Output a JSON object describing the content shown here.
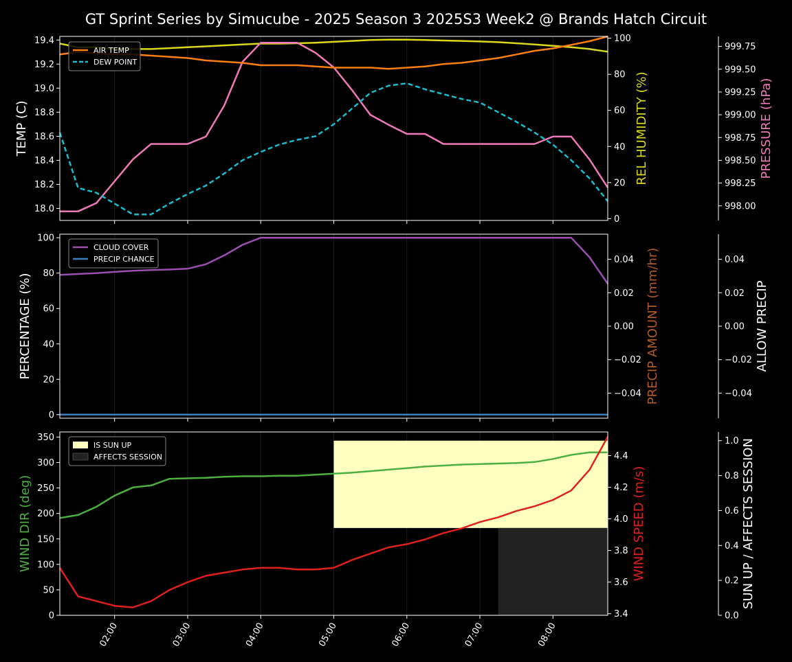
{
  "title": "GT Sprint Series by Simucube - 2025 Season 3 2025S3 Week2 @ Brands Hatch Circuit",
  "x_ticks": [
    "02:00",
    "03:00",
    "04:00",
    "05:00",
    "06:00",
    "07:00",
    "08:00"
  ],
  "colors": {
    "air_temp": "#ff7f0e",
    "dew_point": "#17becf",
    "humidity": "#d8d81c",
    "pressure": "#f07ab8",
    "cloud": "#9b4fb0",
    "precip_chance": "#3f7fbf",
    "wind_dir": "#4caf3f",
    "wind_speed": "#e0201c",
    "sun_up": "#ffffc0",
    "affects": "#222222",
    "precip_amount_label": "#b05a2a"
  },
  "chart_data": [
    {
      "type": "line",
      "panel": "top",
      "x_hours": [
        1.25,
        1.5,
        1.75,
        2.0,
        2.25,
        2.5,
        2.75,
        3.0,
        3.25,
        3.5,
        3.75,
        4.0,
        4.25,
        4.5,
        4.75,
        5.0,
        5.25,
        5.5,
        5.75,
        6.0,
        6.25,
        6.5,
        6.75,
        7.0,
        7.25,
        7.5,
        7.75,
        8.0,
        8.25,
        8.5,
        8.75
      ],
      "ylabel_left": "TEMP (C)",
      "ylabel_right1": "REL HUMIDITY (%)",
      "ylabel_right2": "PRESSURE (hPa)",
      "left_ticks": [
        "18.0",
        "18.2",
        "18.4",
        "18.6",
        "18.8",
        "19.0",
        "19.2",
        "19.4"
      ],
      "right1_ticks": [
        "0",
        "20",
        "40",
        "60",
        "80",
        "100"
      ],
      "right2_ticks": [
        "998.00",
        "998.25",
        "998.50",
        "998.75",
        "999.00",
        "999.25",
        "999.50",
        "999.75"
      ],
      "ylim_left": [
        17.9,
        19.43
      ],
      "ylim_right1": [
        -1,
        101
      ],
      "ylim_right2": [
        997.84,
        999.86
      ],
      "legend": [
        "AIR TEMP",
        "DEW POINT"
      ],
      "series": [
        {
          "name": "AIR TEMP",
          "axis": "left",
          "values": [
            19.28,
            19.3,
            19.29,
            19.28,
            19.28,
            19.27,
            19.26,
            19.25,
            19.23,
            19.22,
            19.21,
            19.19,
            19.19,
            19.19,
            19.18,
            19.17,
            19.17,
            19.17,
            19.16,
            19.17,
            19.18,
            19.2,
            19.21,
            19.23,
            19.25,
            19.28,
            19.31,
            19.33,
            19.36,
            19.39,
            19.43
          ]
        },
        {
          "name": "DEW POINT",
          "axis": "left",
          "style": "dashed",
          "values": [
            18.63,
            18.17,
            18.13,
            18.04,
            17.95,
            17.95,
            18.04,
            18.12,
            18.19,
            18.29,
            18.4,
            18.47,
            18.53,
            18.57,
            18.6,
            18.7,
            18.83,
            18.96,
            19.02,
            19.04,
            18.99,
            18.95,
            18.91,
            18.88,
            18.8,
            18.72,
            18.63,
            18.53,
            18.4,
            18.25,
            18.06
          ]
        },
        {
          "name": "REL HUMIDITY",
          "axis": "right1",
          "values": [
            97,
            95,
            95,
            94,
            94,
            94,
            94.5,
            95,
            95.5,
            96,
            96.5,
            97,
            97,
            97.2,
            97.5,
            98,
            98.5,
            99,
            99.2,
            99.2,
            99,
            98.7,
            98.5,
            98.2,
            97.8,
            97.2,
            96.5,
            95.8,
            95,
            94,
            92.5
          ]
        },
        {
          "name": "PRESSURE",
          "axis": "right2",
          "values": [
            997.94,
            997.94,
            998.03,
            998.27,
            998.51,
            998.68,
            998.68,
            998.68,
            998.76,
            999.1,
            999.58,
            999.79,
            999.79,
            999.79,
            999.68,
            999.52,
            999.27,
            999.0,
            998.89,
            998.79,
            998.79,
            998.68,
            998.68,
            998.68,
            998.68,
            998.68,
            998.68,
            998.76,
            998.76,
            998.51,
            998.2
          ]
        }
      ]
    },
    {
      "type": "line",
      "panel": "middle",
      "ylabel_left": "PERCENTAGE (%)",
      "ylabel_right1": "PRECIP AMOUNT (mm/hr)",
      "ylabel_right2": "ALLOW PRECIP",
      "left_ticks": [
        "0",
        "20",
        "40",
        "60",
        "80",
        "100"
      ],
      "right1_ticks": [
        "−0.04",
        "−0.02",
        "0.00",
        "0.02",
        "0.04"
      ],
      "right2_ticks": [
        "−0.04",
        "−0.02",
        "0.00",
        "0.02",
        "0.04"
      ],
      "ylim_left": [
        -2,
        102
      ],
      "ylim_right": [
        -0.055,
        0.055
      ],
      "legend": [
        "CLOUD COVER",
        "PRECIP CHANCE"
      ],
      "series": [
        {
          "name": "CLOUD COVER",
          "values": [
            79,
            79.5,
            80,
            80.7,
            81.3,
            81.7,
            82,
            82.5,
            85,
            90,
            96,
            100,
            100,
            100,
            100,
            100,
            100,
            100,
            100,
            100,
            100,
            100,
            100,
            100,
            100,
            100,
            100,
            100,
            100,
            89,
            74
          ]
        },
        {
          "name": "PRECIP CHANCE",
          "values": [
            0,
            0,
            0,
            0,
            0,
            0,
            0,
            0,
            0,
            0,
            0,
            0,
            0,
            0,
            0,
            0,
            0,
            0,
            0,
            0,
            0,
            0,
            0,
            0,
            0,
            0,
            0,
            0,
            0,
            0,
            0
          ]
        }
      ]
    },
    {
      "type": "line",
      "panel": "bottom",
      "ylabel_left": "WIND DIR (deg)",
      "ylabel_right1": "WIND SPEED (m/s)",
      "ylabel_right2": "SUN UP / AFFECTS SESSION",
      "left_ticks": [
        "0",
        "50",
        "100",
        "150",
        "200",
        "250",
        "300",
        "350"
      ],
      "right1_ticks": [
        "3.4",
        "3.6",
        "3.8",
        "4.0",
        "4.2",
        "4.4"
      ],
      "right2_ticks": [
        "0.0",
        "0.2",
        "0.4",
        "0.6",
        "0.8",
        "1.0"
      ],
      "ylim_left": [
        0,
        360
      ],
      "ylim_right1": [
        3.39,
        4.55
      ],
      "ylim_right2": [
        0,
        1.05
      ],
      "legend": [
        "IS SUN UP",
        "AFFECTS SESSION"
      ],
      "sun_up_span": {
        "start": 5.0,
        "end": 8.75,
        "value": 1.0
      },
      "affects_span": {
        "start": 7.25,
        "end": 8.75,
        "value": 0.5
      },
      "series": [
        {
          "name": "WIND DIR",
          "axis": "left",
          "values": [
            191,
            197,
            213,
            235,
            251,
            255,
            268,
            269,
            270,
            272,
            273,
            273,
            274,
            274,
            276,
            278,
            280,
            283,
            286,
            289,
            292,
            294,
            296,
            297,
            298,
            299,
            301,
            307,
            315,
            320,
            320
          ]
        },
        {
          "name": "WIND SPEED",
          "axis": "right1",
          "values": [
            3.69,
            3.51,
            3.48,
            3.45,
            3.44,
            3.48,
            3.55,
            3.6,
            3.64,
            3.66,
            3.68,
            3.69,
            3.69,
            3.68,
            3.68,
            3.69,
            3.74,
            3.78,
            3.82,
            3.84,
            3.87,
            3.91,
            3.94,
            3.98,
            4.01,
            4.05,
            4.08,
            4.12,
            4.18,
            4.31,
            4.52
          ]
        }
      ]
    }
  ]
}
